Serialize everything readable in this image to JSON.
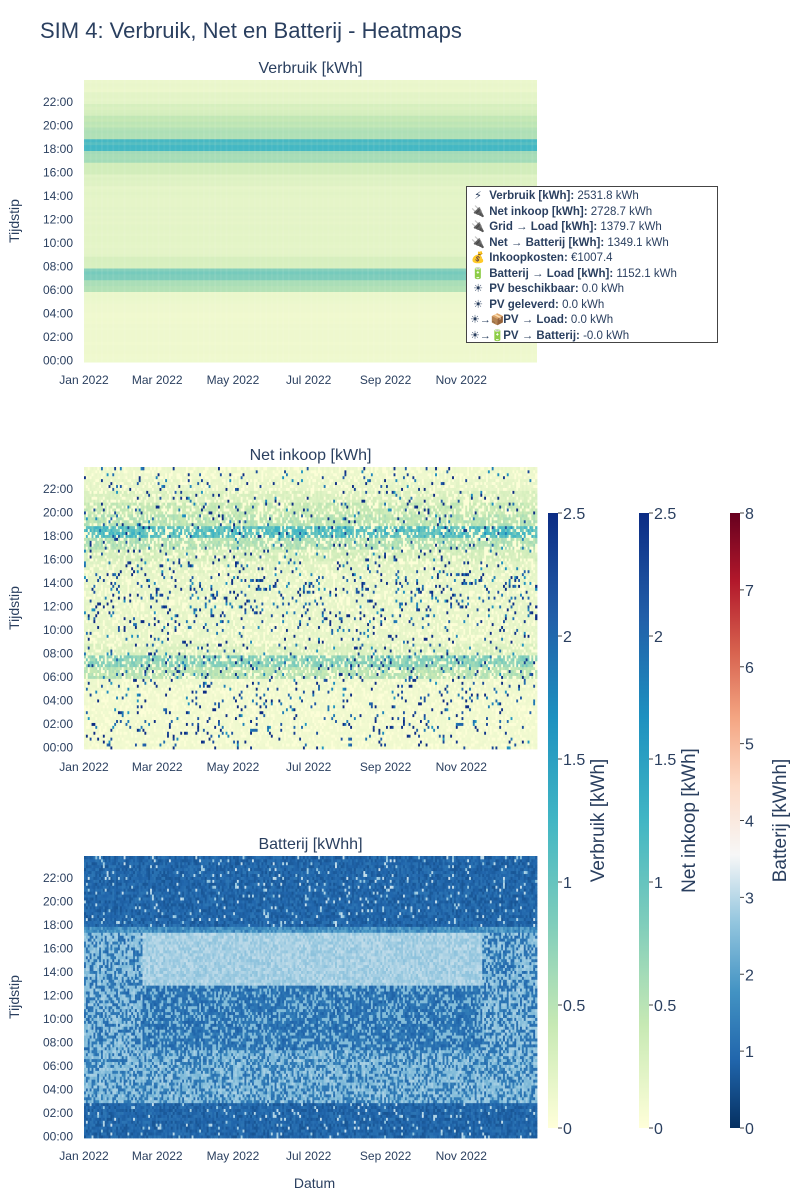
{
  "title": "SIM 4: Verbruik, Net en Batterij - Heatmaps",
  "tooltip": {
    "rows": [
      {
        "icon": "lightning-icon",
        "glyph": "⚡",
        "label": "Verbruik [kWh]:",
        "value": "2531.8 kWh"
      },
      {
        "icon": "plug-icon",
        "glyph": "🔌",
        "label": "Net inkoop [kWh]:",
        "value": "2728.7 kWh"
      },
      {
        "icon": "plug-icon",
        "glyph": "🔌",
        "label": "Grid → Load [kWh]:",
        "value": "1379.7 kWh"
      },
      {
        "icon": "plug-icon",
        "glyph": "🔌",
        "label": "Net → Batterij [kWh]:",
        "value": "1349.1 kWh"
      },
      {
        "icon": "money-bag-icon",
        "glyph": "💰",
        "label": "Inkoopkosten:",
        "value": "€1007.4"
      },
      {
        "icon": "battery-icon",
        "glyph": "🔋",
        "label": "Batterij → Load [kWh]:",
        "value": "1152.1 kWh"
      },
      {
        "icon": "sun-icon",
        "glyph": "☀",
        "label": "PV beschikbaar:",
        "value": "0.0 kWh"
      },
      {
        "icon": "sun-icon",
        "glyph": "☀",
        "label": "PV geleverd:",
        "value": "0.0 kWh"
      },
      {
        "icon": "sun-package-icon",
        "glyph": "☀→📦",
        "label": "PV → Load:",
        "value": "0.0 kWh"
      },
      {
        "icon": "sun-battery-icon",
        "glyph": "☀→🔋",
        "label": "PV → Batterij:",
        "value": "-0.0 kWh"
      }
    ]
  },
  "chart_data": [
    {
      "type": "heatmap",
      "title": "Verbruik [kWh]",
      "ylabel": "Tijdstip",
      "xlabel": "",
      "x_tick_labels": [
        "Jan 2022",
        "Mar 2022",
        "May 2022",
        "Jul 2022",
        "Sep 2022",
        "Nov 2022"
      ],
      "y_tick_labels": [
        "00:00",
        "02:00",
        "04:00",
        "06:00",
        "08:00",
        "10:00",
        "12:00",
        "14:00",
        "16:00",
        "18:00",
        "20:00",
        "22:00"
      ],
      "x_range": [
        "2022-01-01",
        "2022-12-31"
      ],
      "y_range": [
        "00:00",
        "23:45"
      ],
      "colorscale": "YlGnBu",
      "zrange": [
        0,
        2.5
      ],
      "hourly_profile_kwh": [
        0.12,
        0.12,
        0.12,
        0.12,
        0.12,
        0.15,
        0.55,
        0.85,
        0.3,
        0.2,
        0.2,
        0.2,
        0.2,
        0.2,
        0.2,
        0.25,
        0.35,
        0.6,
        1.2,
        0.55,
        0.45,
        0.3,
        0.2,
        0.15
      ]
    },
    {
      "type": "heatmap",
      "title": "Net inkoop [kWh]",
      "ylabel": "Tijdstip",
      "xlabel": "",
      "x_tick_labels": [
        "Jan 2022",
        "Mar 2022",
        "May 2022",
        "Jul 2022",
        "Sep 2022",
        "Nov 2022"
      ],
      "y_tick_labels": [
        "00:00",
        "02:00",
        "04:00",
        "06:00",
        "08:00",
        "10:00",
        "12:00",
        "14:00",
        "16:00",
        "18:00",
        "20:00",
        "22:00"
      ],
      "x_range": [
        "2022-01-01",
        "2022-12-31"
      ],
      "y_range": [
        "00:00",
        "23:45"
      ],
      "colorscale": "YlGnBu",
      "zrange": [
        0,
        2.5
      ]
    },
    {
      "type": "heatmap",
      "title": "Batterij [kWhh]",
      "ylabel": "Tijdstip",
      "xlabel": "Datum",
      "x_tick_labels": [
        "Jan 2022",
        "Mar 2022",
        "May 2022",
        "Jul 2022",
        "Sep 2022",
        "Nov 2022"
      ],
      "y_tick_labels": [
        "00:00",
        "02:00",
        "04:00",
        "06:00",
        "08:00",
        "10:00",
        "12:00",
        "14:00",
        "16:00",
        "18:00",
        "20:00",
        "22:00"
      ],
      "x_range": [
        "2022-01-01",
        "2022-12-31"
      ],
      "y_range": [
        "00:00",
        "23:45"
      ],
      "colorscale": "RdBu_r",
      "zrange": [
        0,
        8
      ]
    }
  ],
  "colorbars": [
    {
      "title": "Verbruik [kWh]",
      "ticks": [
        "0",
        "0.5",
        "1",
        "1.5",
        "2",
        "2.5"
      ],
      "range": [
        0,
        2.5
      ],
      "colors": [
        "#ffffd9",
        "#c7e9b4",
        "#7fcdbb",
        "#41b6c4",
        "#1d91c0",
        "#225ea8",
        "#0c2c84"
      ]
    },
    {
      "title": "Net inkoop [kWh]",
      "ticks": [
        "0",
        "0.5",
        "1",
        "1.5",
        "2",
        "2.5"
      ],
      "range": [
        0,
        2.5
      ],
      "colors": [
        "#ffffd9",
        "#c7e9b4",
        "#7fcdbb",
        "#41b6c4",
        "#1d91c0",
        "#225ea8",
        "#0c2c84"
      ]
    },
    {
      "title": "Batterij [kWhh]",
      "ticks": [
        "0",
        "1",
        "2",
        "3",
        "4",
        "5",
        "6",
        "7",
        "8"
      ],
      "range": [
        0,
        8
      ],
      "colors": [
        "#053061",
        "#2166ac",
        "#4393c3",
        "#92c5de",
        "#f7f7f7",
        "#fddbc7",
        "#f4a582",
        "#d6604d",
        "#b2182b",
        "#67001f"
      ]
    }
  ]
}
